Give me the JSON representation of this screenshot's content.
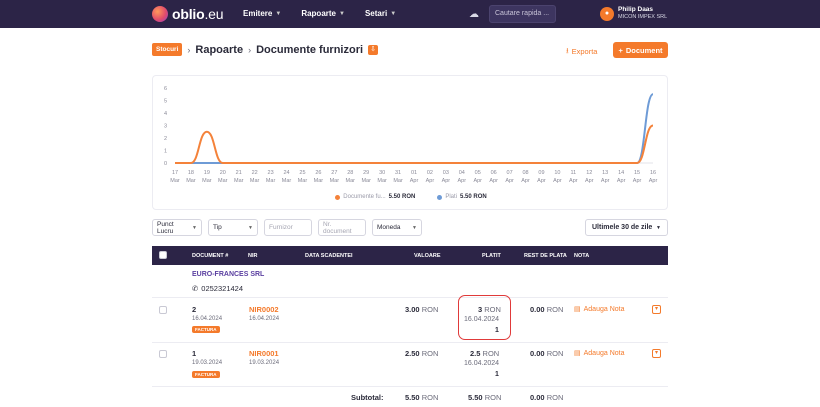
{
  "app": {
    "logo_main": "oblio",
    "logo_suffix": ".eu",
    "nav": [
      {
        "label": "Emitere"
      },
      {
        "label": "Rapoarte"
      },
      {
        "label": "Setari"
      }
    ],
    "search_placeholder": "Cautare rapida ...",
    "user": {
      "name": "Philip Daas",
      "company": "MICON IMPEX SRL"
    }
  },
  "breadcrumb": {
    "badge": "Stocuri",
    "items": [
      "Rapoarte",
      "Documente furnizori"
    ]
  },
  "actions": {
    "export_label": "Exporta",
    "document_label": "Document"
  },
  "colors": {
    "accent": "#f47a2b",
    "header": "#2c2447",
    "series_docs": "#f4823a",
    "series_payments": "#6e9bd6"
  },
  "chart_data": {
    "type": "line",
    "x": [
      "17 Mar",
      "18 Mar",
      "19 Mar",
      "20 Mar",
      "21 Mar",
      "22 Mar",
      "23 Mar",
      "24 Mar",
      "25 Mar",
      "26 Mar",
      "27 Mar",
      "28 Mar",
      "29 Mar",
      "30 Mar",
      "31 Mar",
      "01 Apr",
      "02 Apr",
      "03 Apr",
      "04 Apr",
      "05 Apr",
      "06 Apr",
      "07 Apr",
      "08 Apr",
      "09 Apr",
      "10 Apr",
      "11 Apr",
      "12 Apr",
      "13 Apr",
      "14 Apr",
      "15 Apr",
      "16 Apr"
    ],
    "x_ticks_top": [
      "17",
      "18",
      "19",
      "20",
      "21",
      "22",
      "23",
      "24",
      "25",
      "26",
      "27",
      "28",
      "29",
      "30",
      "31",
      "01",
      "02",
      "03",
      "04",
      "05",
      "06",
      "07",
      "08",
      "09",
      "10",
      "11",
      "12",
      "13",
      "14",
      "15",
      "16"
    ],
    "x_ticks_bottom": [
      "Mar",
      "Mar",
      "Mar",
      "Mar",
      "Mar",
      "Mar",
      "Mar",
      "Mar",
      "Mar",
      "Mar",
      "Mar",
      "Mar",
      "Mar",
      "Mar",
      "Mar",
      "Apr",
      "Apr",
      "Apr",
      "Apr",
      "Apr",
      "Apr",
      "Apr",
      "Apr",
      "Apr",
      "Apr",
      "Apr",
      "Apr",
      "Apr",
      "Apr",
      "Apr",
      "Apr"
    ],
    "y_ticks": [
      0,
      1,
      2,
      3,
      4,
      5,
      6
    ],
    "ylim": [
      0,
      6
    ],
    "series": [
      {
        "name": "Documente fu...",
        "total": "5.50 RON",
        "values": [
          0,
          0,
          2.5,
          0,
          0,
          0,
          0,
          0,
          0,
          0,
          0,
          0,
          0,
          0,
          0,
          0,
          0,
          0,
          0,
          0,
          0,
          0,
          0,
          0,
          0,
          0,
          0,
          0,
          0,
          0,
          3
        ]
      },
      {
        "name": "Plati",
        "total": "5.50 RON",
        "values": [
          0,
          0,
          0,
          0,
          0,
          0,
          0,
          0,
          0,
          0,
          0,
          0,
          0,
          0,
          0,
          0,
          0,
          0,
          0,
          0,
          0,
          0,
          0,
          0,
          0,
          0,
          0,
          0,
          0,
          0,
          5.5
        ]
      }
    ],
    "legend_position": "bottom",
    "grid": false
  },
  "filters": [
    {
      "label": "Punct Lucru",
      "kind": "select"
    },
    {
      "label": "Tip",
      "kind": "select"
    },
    {
      "label": "Furnizor",
      "kind": "input"
    },
    {
      "label": "Nr. document",
      "kind": "input"
    },
    {
      "label": "Moneda",
      "kind": "select"
    }
  ],
  "period": "Ultimele 30 de zile",
  "table": {
    "columns": [
      "DOCUMENT #",
      "NIR",
      "DATA SCADENTEI",
      "VALOARE",
      "PLATIT",
      "REST DE PLATA",
      "NOTA"
    ],
    "supplier": {
      "name": "EURO-FRANCES SRL",
      "phone": "0252321424"
    },
    "rows": [
      {
        "doc": "2",
        "doc_date": "16.04.2024",
        "tag": "FACTURA",
        "nir": "NIR0002",
        "nir_date": "16.04.2024",
        "value": "3.00",
        "currency": "RON",
        "paid": "3",
        "paid_date": "16.04.2024",
        "paid_count": "1",
        "rest": "0.00",
        "note": "Adauga Nota"
      },
      {
        "doc": "1",
        "doc_date": "19.03.2024",
        "tag": "FACTURA",
        "nir": "NIR0001",
        "nir_date": "19.03.2024",
        "value": "2.50",
        "currency": "RON",
        "paid": "2.5",
        "paid_date": "16.04.2024",
        "paid_count": "1",
        "rest": "0.00",
        "note": "Adauga Nota"
      }
    ],
    "subtotal": {
      "label": "Subtotal:",
      "value": "5.50",
      "paid": "5.50",
      "rest": "0.00",
      "currency": "RON"
    }
  }
}
